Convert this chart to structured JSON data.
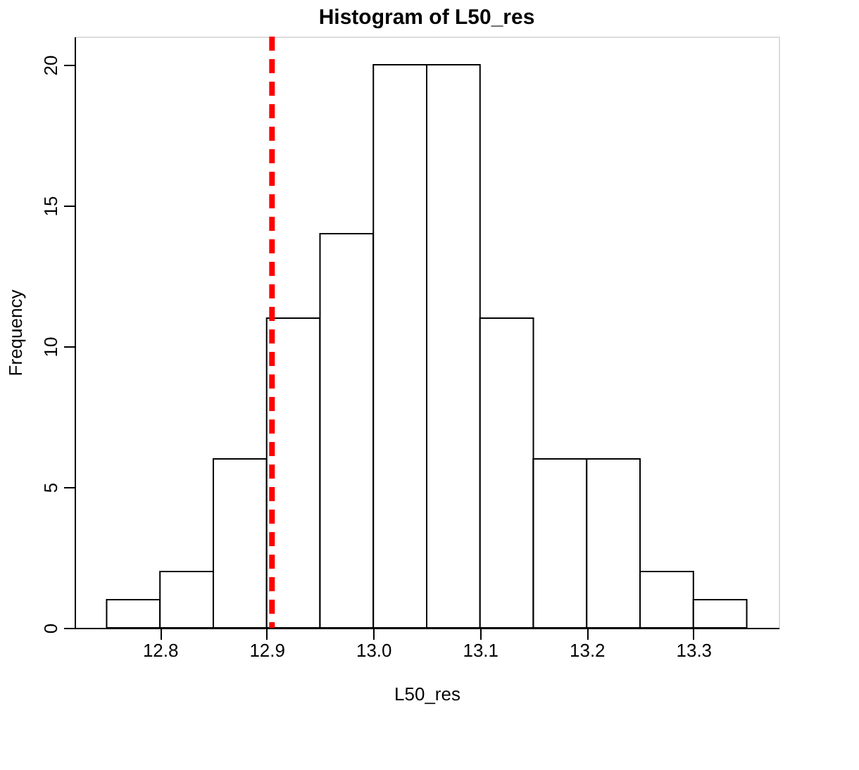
{
  "chart_data": {
    "type": "histogram",
    "title": "Histogram of L50_res",
    "xlabel": "L50_res",
    "ylabel": "Frequency",
    "bins": [
      12.75,
      12.8,
      12.85,
      12.9,
      12.95,
      13.0,
      13.05,
      13.1,
      13.15,
      13.2,
      13.25,
      13.3,
      13.35
    ],
    "values": [
      1,
      2,
      6,
      11,
      14,
      20,
      20,
      11,
      6,
      6,
      2,
      1
    ],
    "color": "#ffffff",
    "xlim": [
      12.72,
      13.38
    ],
    "ylim": [
      0,
      21
    ],
    "xticks": [
      12.8,
      12.9,
      {
        "value": 13.0,
        "label": "13.0"
      },
      13.1,
      13.2,
      13.3
    ],
    "yticks": [
      0,
      5,
      10,
      15,
      20
    ],
    "ref_lines": [
      {
        "axis": "x",
        "value": 12.905,
        "color": "#ff0000",
        "line_style": "dashed"
      }
    ],
    "grid": false
  }
}
